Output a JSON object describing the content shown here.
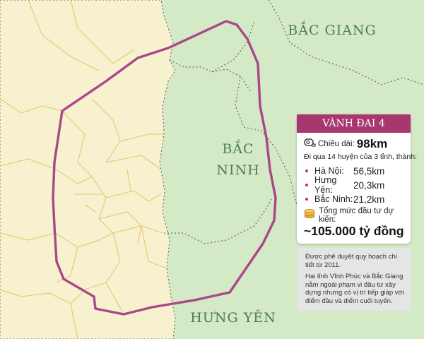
{
  "map": {
    "colors": {
      "hanoi_fill": "#f7f1cf",
      "neighbor_fill": "#d4e9c5",
      "district_line": "#e3c96e",
      "province_border": "#555555",
      "ring_road": "#a8488a"
    },
    "labels": {
      "bac_giang": "BẮC GIANG",
      "bac_ninh_line1": "BẮC",
      "bac_ninh_line2": "NINH",
      "hung_yen": "HƯNG YÊN"
    }
  },
  "info_card": {
    "title": "VÀNH ĐAI 4",
    "length_icon": "tape-measure-icon",
    "length_label": "Chiều dài:",
    "length_value": "98km",
    "passes_through": "Đi qua 14 huyện của 3 tỉnh, thành:",
    "segments": [
      {
        "name": "Hà Nội:",
        "km": "56,5km"
      },
      {
        "name": "Hưng Yên:",
        "km": "20,3km"
      },
      {
        "name": "Bắc Ninh:",
        "km": "21,2km"
      }
    ],
    "investment_icon": "coin-stack-icon",
    "investment_label": "Tổng mức đầu tư dự kiến:",
    "investment_value": "~105.000 tỷ đồng",
    "note_1": "Được phê duyệt quy hoạch chi tiết từ 2011.",
    "note_2": "Hai tỉnh Vĩnh Phúc và Bắc Giang nằm ngoài phạm vi đầu tư xây dựng nhưng có vị trí tiếp giáp với điểm đầu và điểm cuối tuyến."
  }
}
